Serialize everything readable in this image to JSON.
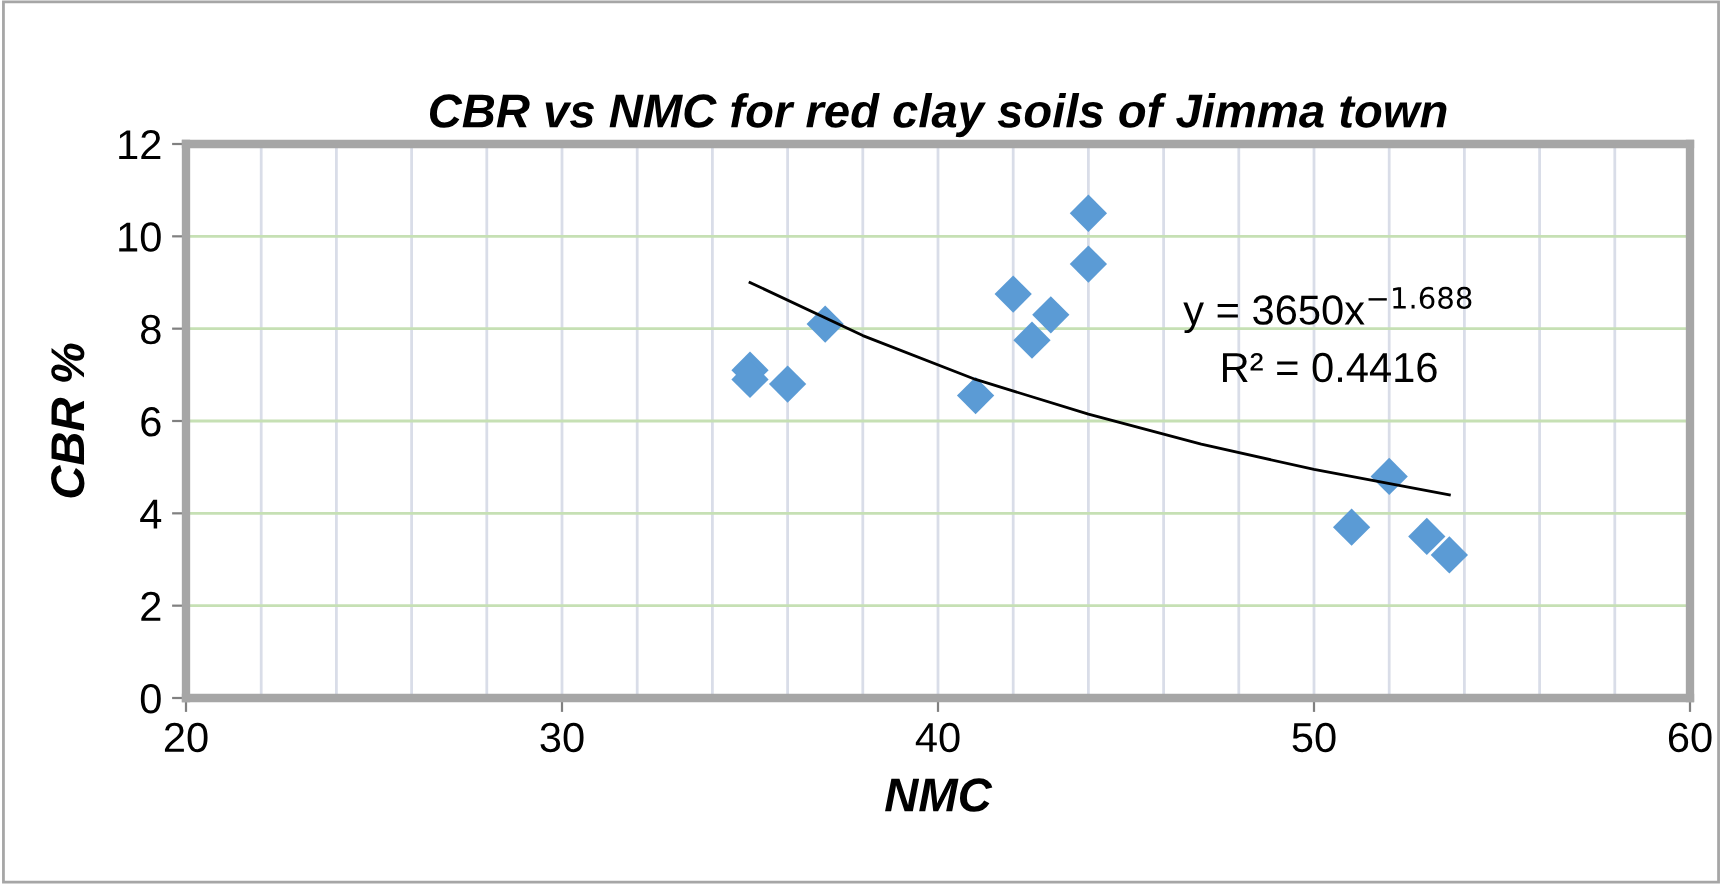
{
  "chart_data": {
    "type": "scatter",
    "title": "CBR vs NMC for red clay soils of Jimma town",
    "xlabel": "NMC",
    "ylabel": "CBR %",
    "xlim": [
      20,
      60
    ],
    "ylim": [
      0,
      12
    ],
    "xticks": [
      20,
      {
        "value": 22,
        "label": null
      },
      {
        "value": 24,
        "label": null
      },
      {
        "value": 26,
        "label": null
      },
      {
        "value": 28,
        "label": null
      },
      30,
      {
        "value": 32,
        "label": null
      },
      {
        "value": 34,
        "label": null
      },
      {
        "value": 36,
        "label": null
      },
      {
        "value": 38,
        "label": null
      },
      40,
      {
        "value": 42,
        "label": null
      },
      {
        "value": 44,
        "label": null
      },
      {
        "value": 46,
        "label": null
      },
      {
        "value": 48,
        "label": null
      },
      50,
      {
        "value": 52,
        "label": null
      },
      {
        "value": 54,
        "label": null
      },
      {
        "value": 56,
        "label": null
      },
      {
        "value": 58,
        "label": null
      },
      60
    ],
    "yticks": [
      0,
      2,
      4,
      6,
      8,
      10,
      12
    ],
    "grid": true,
    "marker": "diamond",
    "series": [
      {
        "color": "#5b9bd5",
        "x": [
          35.0,
          35.0,
          36.0,
          37.0,
          41.0,
          42.0,
          42.5,
          43.0,
          44.0,
          44.0,
          51.0,
          52.0,
          53.0,
          53.6
        ],
        "values": [
          7.1,
          6.9,
          6.8,
          8.1,
          6.55,
          8.75,
          7.75,
          8.3,
          10.5,
          9.4,
          3.7,
          4.8,
          3.5,
          3.1
        ]
      },
      {
        "type": "line",
        "color": "#000000",
        "marker": "none",
        "x": [
          35,
          38,
          41,
          44,
          47,
          50,
          53.6
        ],
        "values": [
          9.0,
          7.85,
          6.9,
          6.15,
          5.5,
          4.95,
          4.4
        ]
      }
    ],
    "annotations": [
      "y = 3650x$^{−1.688}$",
      "R² = 0.4416"
    ]
  }
}
